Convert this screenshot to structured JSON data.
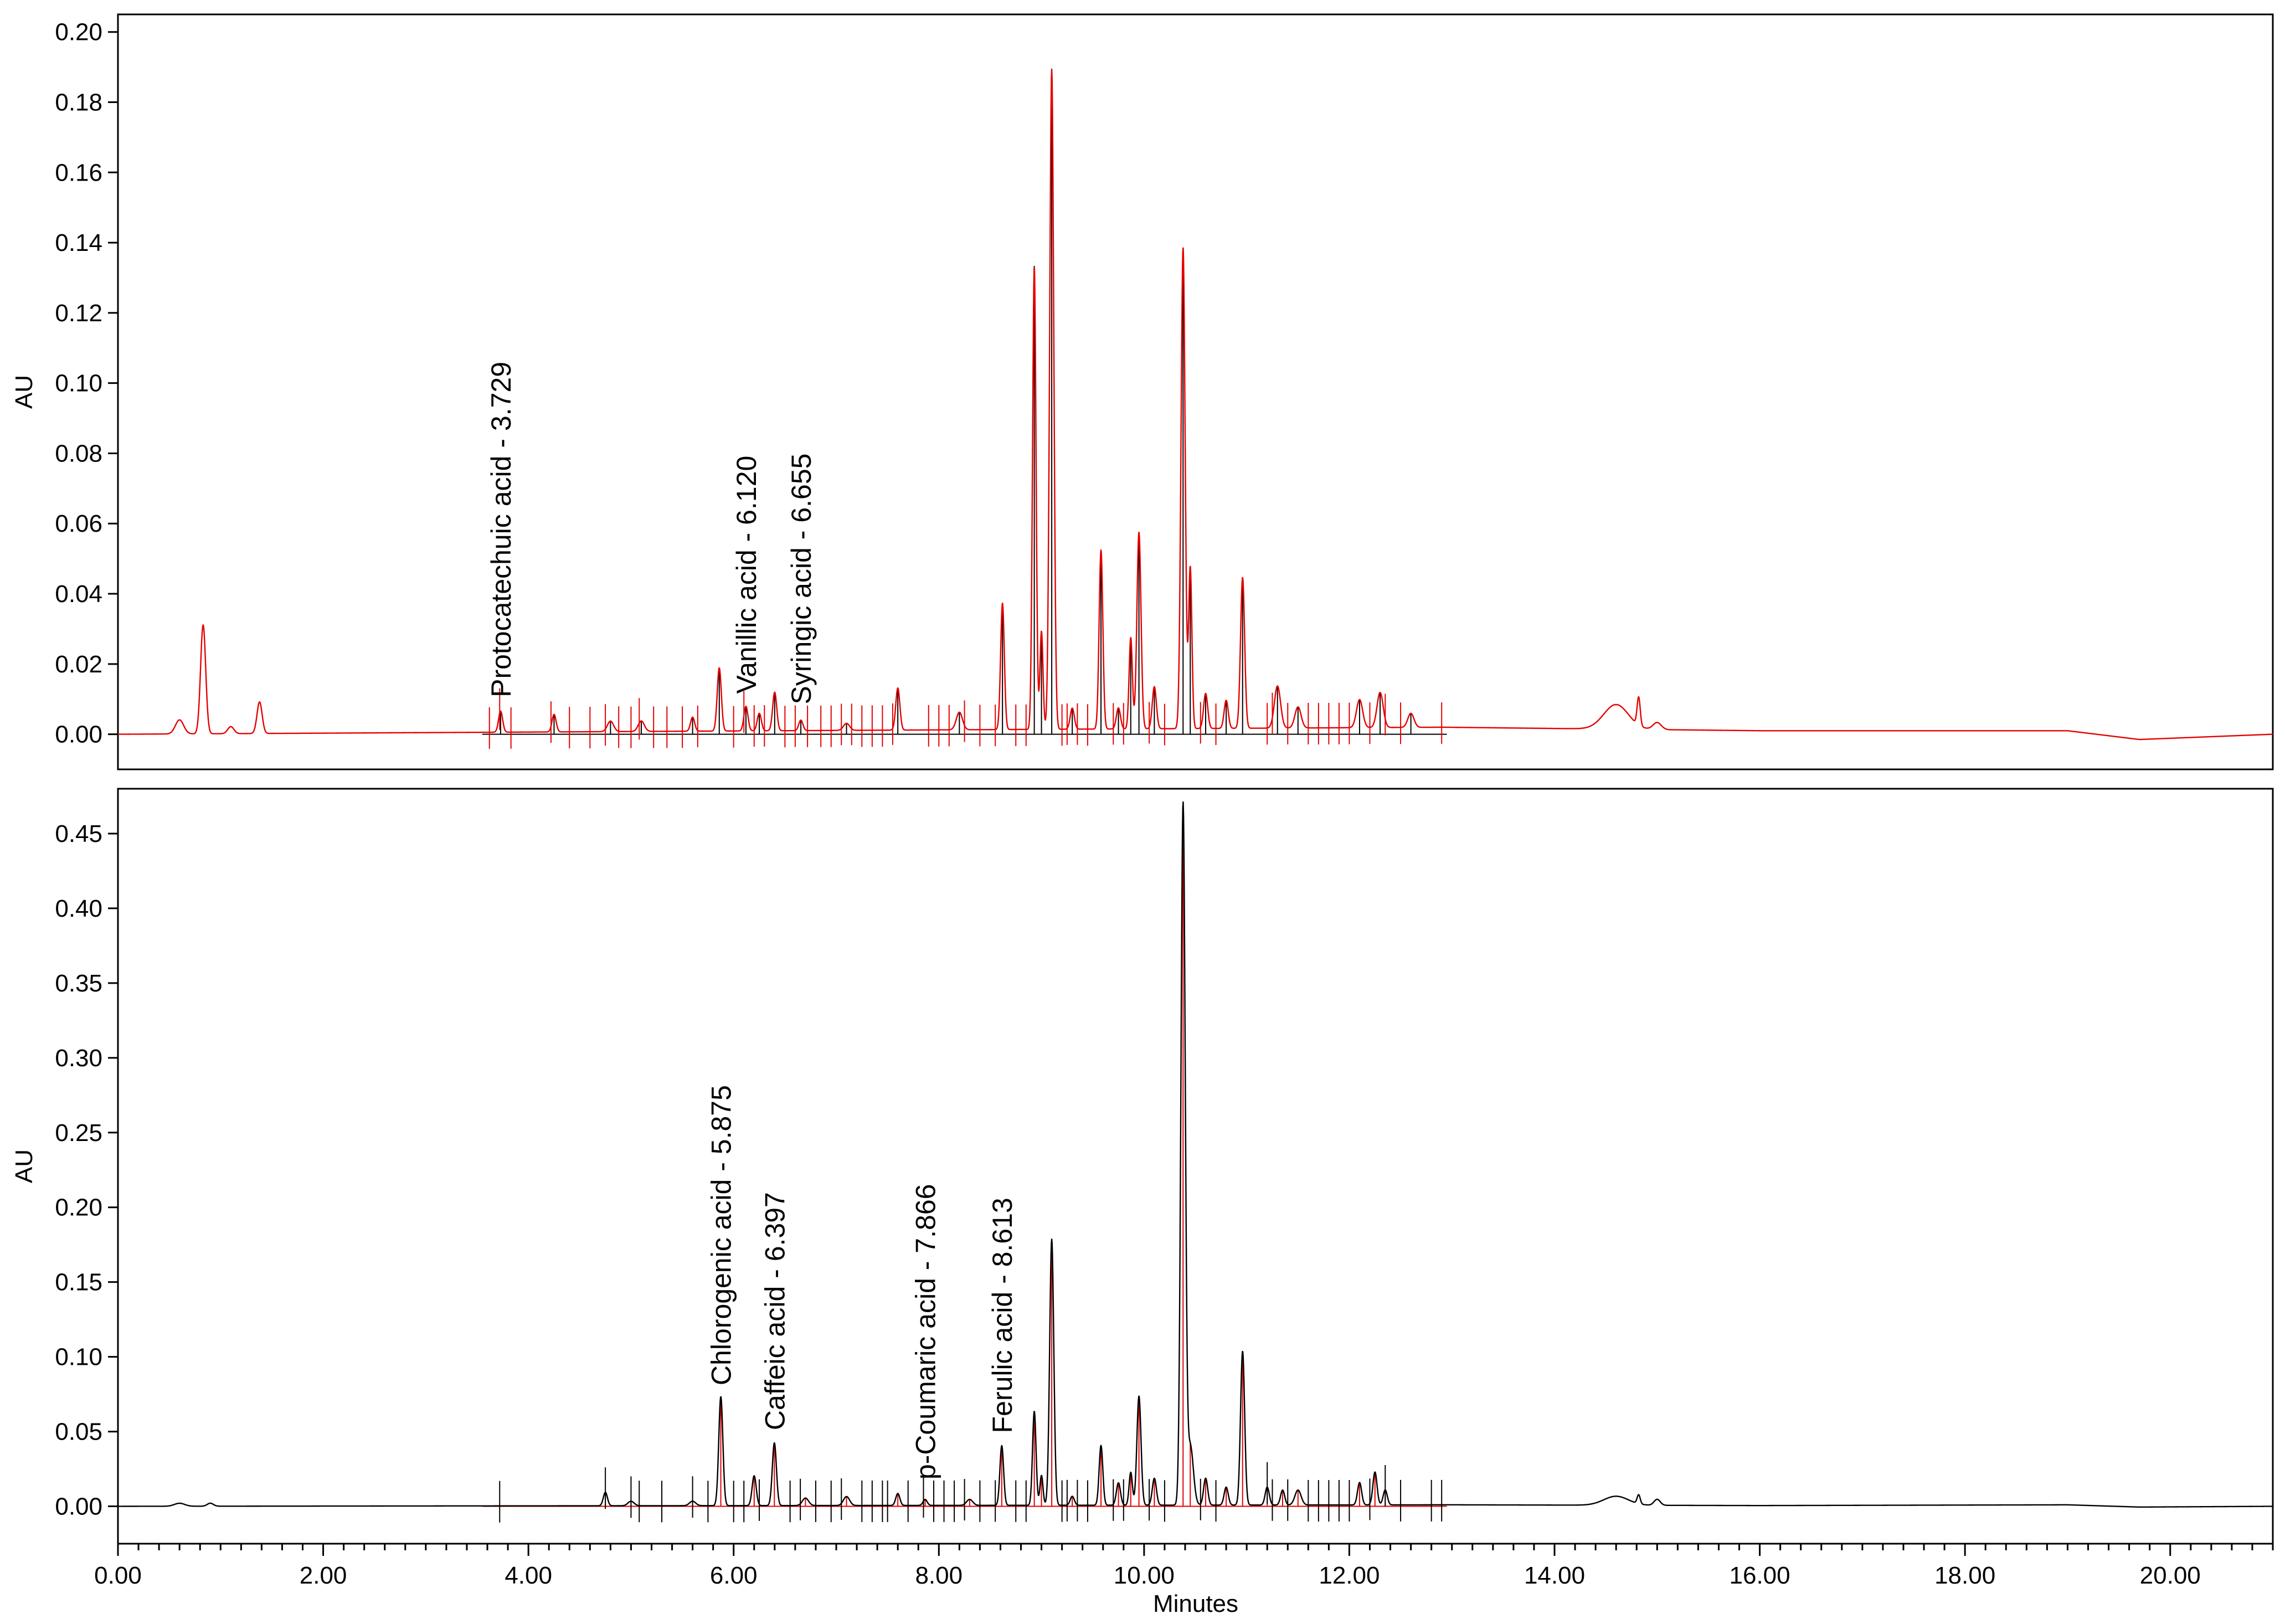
{
  "chart_data": [
    {
      "type": "line",
      "title": "",
      "xlabel": "",
      "ylabel": "AU",
      "xlim": [
        0,
        21
      ],
      "ylim": [
        -0.01,
        0.205
      ],
      "yticks": [
        0.0,
        0.02,
        0.04,
        0.06,
        0.08,
        0.1,
        0.12,
        0.14,
        0.16,
        0.18,
        0.2
      ],
      "ytick_labels": [
        "0.00",
        "0.02",
        "0.04",
        "0.06",
        "0.08",
        "0.10",
        "0.12",
        "0.14",
        "0.16",
        "0.18",
        "0.20"
      ],
      "trace_color": "#e60000",
      "marker_color": "#000000",
      "baseline": 0.0,
      "peaks": [
        {
          "x": 0.6,
          "y": 0.004,
          "w": 0.04
        },
        {
          "x": 0.83,
          "y": 0.031,
          "w": 0.025
        },
        {
          "x": 1.1,
          "y": 0.002,
          "w": 0.03
        },
        {
          "x": 1.38,
          "y": 0.009,
          "w": 0.025
        },
        {
          "x": 3.729,
          "y": 0.006,
          "w": 0.02
        },
        {
          "x": 4.25,
          "y": 0.005,
          "w": 0.02
        },
        {
          "x": 4.8,
          "y": 0.003,
          "w": 0.03
        },
        {
          "x": 5.1,
          "y": 0.003,
          "w": 0.03
        },
        {
          "x": 5.6,
          "y": 0.004,
          "w": 0.02
        },
        {
          "x": 5.86,
          "y": 0.018,
          "w": 0.02
        },
        {
          "x": 6.12,
          "y": 0.007,
          "w": 0.02
        },
        {
          "x": 6.25,
          "y": 0.005,
          "w": 0.02
        },
        {
          "x": 6.4,
          "y": 0.011,
          "w": 0.02
        },
        {
          "x": 6.655,
          "y": 0.003,
          "w": 0.02
        },
        {
          "x": 7.1,
          "y": 0.002,
          "w": 0.03
        },
        {
          "x": 7.6,
          "y": 0.012,
          "w": 0.02
        },
        {
          "x": 8.2,
          "y": 0.005,
          "w": 0.03
        },
        {
          "x": 8.62,
          "y": 0.036,
          "w": 0.018
        },
        {
          "x": 8.93,
          "y": 0.132,
          "w": 0.017
        },
        {
          "x": 9.0,
          "y": 0.028,
          "w": 0.015
        },
        {
          "x": 9.1,
          "y": 0.188,
          "w": 0.02
        },
        {
          "x": 9.3,
          "y": 0.006,
          "w": 0.02
        },
        {
          "x": 9.58,
          "y": 0.051,
          "w": 0.018
        },
        {
          "x": 9.75,
          "y": 0.006,
          "w": 0.02
        },
        {
          "x": 9.87,
          "y": 0.026,
          "w": 0.016
        },
        {
          "x": 9.95,
          "y": 0.056,
          "w": 0.02
        },
        {
          "x": 10.1,
          "y": 0.012,
          "w": 0.02
        },
        {
          "x": 10.38,
          "y": 0.137,
          "w": 0.02
        },
        {
          "x": 10.45,
          "y": 0.046,
          "w": 0.016
        },
        {
          "x": 10.6,
          "y": 0.01,
          "w": 0.02
        },
        {
          "x": 10.8,
          "y": 0.008,
          "w": 0.02
        },
        {
          "x": 10.96,
          "y": 0.043,
          "w": 0.02
        },
        {
          "x": 11.3,
          "y": 0.012,
          "w": 0.03
        },
        {
          "x": 11.5,
          "y": 0.006,
          "w": 0.03
        },
        {
          "x": 12.1,
          "y": 0.008,
          "w": 0.03
        },
        {
          "x": 12.3,
          "y": 0.01,
          "w": 0.03
        },
        {
          "x": 12.6,
          "y": 0.004,
          "w": 0.03
        },
        {
          "x": 14.6,
          "y": 0.007,
          "w": 0.12
        },
        {
          "x": 14.82,
          "y": 0.008,
          "w": 0.015
        },
        {
          "x": 15.0,
          "y": 0.002,
          "w": 0.04
        }
      ],
      "drift": [
        {
          "x": 0,
          "y": 0.0
        },
        {
          "x": 12.9,
          "y": 0.002
        },
        {
          "x": 16.0,
          "y": 0.001
        },
        {
          "x": 19.0,
          "y": 0.001
        },
        {
          "x": 19.7,
          "y": -0.0015
        },
        {
          "x": 21.0,
          "y": 0.0
        }
      ],
      "marker_x": [
        3.62,
        3.72,
        3.83,
        4.22,
        4.4,
        4.6,
        4.75,
        4.88,
        5.0,
        5.08,
        5.22,
        5.35,
        5.5,
        5.65,
        6.0,
        6.1,
        6.2,
        6.3,
        6.5,
        6.6,
        6.72,
        6.85,
        6.95,
        7.05,
        7.15,
        7.25,
        7.35,
        7.45,
        7.55,
        7.9,
        8.0,
        8.1,
        8.25,
        8.4,
        8.55,
        8.75,
        8.85,
        9.2,
        9.25,
        9.35,
        9.45,
        9.7,
        9.8,
        10.05,
        10.2,
        10.55,
        10.7,
        11.2,
        11.25,
        11.4,
        11.6,
        11.7,
        11.8,
        11.9,
        12.0,
        12.2,
        12.35,
        12.5,
        12.9
      ],
      "annotations": [
        {
          "x": 3.729,
          "y": 0.008,
          "text": "Protocatechuic acid - 3.729"
        },
        {
          "x": 6.12,
          "y": 0.009,
          "text": "Vanillic acid - 6.120"
        },
        {
          "x": 6.655,
          "y": 0.006,
          "text": "Syringic acid - 6.655"
        }
      ]
    },
    {
      "type": "line",
      "title": "",
      "xlabel": "Minutes",
      "ylabel": "AU",
      "xlim": [
        0,
        21
      ],
      "ylim": [
        -0.025,
        0.48
      ],
      "yticks": [
        0.0,
        0.05,
        0.1,
        0.15,
        0.2,
        0.25,
        0.3,
        0.35,
        0.4,
        0.45
      ],
      "ytick_labels": [
        "0.00",
        "0.05",
        "0.10",
        "0.15",
        "0.20",
        "0.25",
        "0.30",
        "0.35",
        "0.40",
        "0.45"
      ],
      "xticks": [
        0,
        2,
        4,
        6,
        8,
        10,
        12,
        14,
        16,
        18,
        20
      ],
      "xtick_labels": [
        "0.00",
        "2.00",
        "4.00",
        "6.00",
        "8.00",
        "10.00",
        "12.00",
        "14.00",
        "16.00",
        "18.00",
        "20.00"
      ],
      "trace_color": "#000000",
      "marker_color": "#e60000",
      "baseline": 0.0,
      "peaks": [
        {
          "x": 0.6,
          "y": 0.002,
          "w": 0.05
        },
        {
          "x": 0.9,
          "y": 0.002,
          "w": 0.03
        },
        {
          "x": 4.75,
          "y": 0.009,
          "w": 0.02
        },
        {
          "x": 5.0,
          "y": 0.003,
          "w": 0.03
        },
        {
          "x": 5.6,
          "y": 0.003,
          "w": 0.03
        },
        {
          "x": 5.875,
          "y": 0.073,
          "w": 0.02
        },
        {
          "x": 6.2,
          "y": 0.02,
          "w": 0.02
        },
        {
          "x": 6.397,
          "y": 0.042,
          "w": 0.02
        },
        {
          "x": 6.7,
          "y": 0.005,
          "w": 0.03
        },
        {
          "x": 7.1,
          "y": 0.006,
          "w": 0.03
        },
        {
          "x": 7.6,
          "y": 0.008,
          "w": 0.02
        },
        {
          "x": 7.866,
          "y": 0.004,
          "w": 0.02
        },
        {
          "x": 8.3,
          "y": 0.004,
          "w": 0.03
        },
        {
          "x": 8.613,
          "y": 0.04,
          "w": 0.018
        },
        {
          "x": 8.93,
          "y": 0.063,
          "w": 0.017
        },
        {
          "x": 9.0,
          "y": 0.02,
          "w": 0.015
        },
        {
          "x": 9.1,
          "y": 0.178,
          "w": 0.02
        },
        {
          "x": 9.3,
          "y": 0.006,
          "w": 0.02
        },
        {
          "x": 9.58,
          "y": 0.04,
          "w": 0.018
        },
        {
          "x": 9.75,
          "y": 0.015,
          "w": 0.02
        },
        {
          "x": 9.87,
          "y": 0.022,
          "w": 0.016
        },
        {
          "x": 9.95,
          "y": 0.073,
          "w": 0.02
        },
        {
          "x": 10.1,
          "y": 0.018,
          "w": 0.02
        },
        {
          "x": 10.38,
          "y": 0.468,
          "w": 0.021
        },
        {
          "x": 10.45,
          "y": 0.04,
          "w": 0.03
        },
        {
          "x": 10.6,
          "y": 0.018,
          "w": 0.02
        },
        {
          "x": 10.8,
          "y": 0.012,
          "w": 0.02
        },
        {
          "x": 10.96,
          "y": 0.103,
          "w": 0.02
        },
        {
          "x": 11.2,
          "y": 0.012,
          "w": 0.02
        },
        {
          "x": 11.35,
          "y": 0.01,
          "w": 0.02
        },
        {
          "x": 11.5,
          "y": 0.01,
          "w": 0.03
        },
        {
          "x": 12.1,
          "y": 0.015,
          "w": 0.02
        },
        {
          "x": 12.25,
          "y": 0.022,
          "w": 0.02
        },
        {
          "x": 12.35,
          "y": 0.01,
          "w": 0.02
        },
        {
          "x": 14.6,
          "y": 0.006,
          "w": 0.12
        },
        {
          "x": 14.82,
          "y": 0.006,
          "w": 0.015
        },
        {
          "x": 15.0,
          "y": 0.004,
          "w": 0.03
        }
      ],
      "drift": [
        {
          "x": 0,
          "y": 0.0
        },
        {
          "x": 13.0,
          "y": 0.001
        },
        {
          "x": 16.0,
          "y": 0.0005
        },
        {
          "x": 19.0,
          "y": 0.001
        },
        {
          "x": 19.7,
          "y": -0.0005
        },
        {
          "x": 21.0,
          "y": 0.0
        }
      ],
      "marker_x": [
        3.72,
        4.75,
        5.0,
        5.08,
        5.3,
        5.6,
        5.75,
        6.0,
        6.1,
        6.25,
        6.55,
        6.65,
        6.8,
        6.95,
        7.05,
        7.25,
        7.35,
        7.45,
        7.5,
        7.7,
        7.85,
        7.95,
        8.05,
        8.15,
        8.25,
        8.4,
        8.55,
        8.75,
        8.85,
        9.2,
        9.25,
        9.35,
        9.45,
        9.7,
        9.8,
        10.05,
        10.2,
        10.55,
        10.7,
        11.2,
        11.25,
        11.4,
        11.6,
        11.7,
        11.8,
        11.9,
        12.0,
        12.2,
        12.35,
        12.5,
        12.8,
        12.9
      ],
      "annotations": [
        {
          "x": 5.875,
          "y": 0.075,
          "text": "Chlorogenic acid - 5.875"
        },
        {
          "x": 6.397,
          "y": 0.045,
          "text": "Caffeic acid - 6.397"
        },
        {
          "x": 7.866,
          "y": 0.012,
          "text": "p-Coumaric acid - 7.866"
        },
        {
          "x": 8.613,
          "y": 0.043,
          "text": "Ferulic acid - 8.613"
        }
      ]
    }
  ]
}
